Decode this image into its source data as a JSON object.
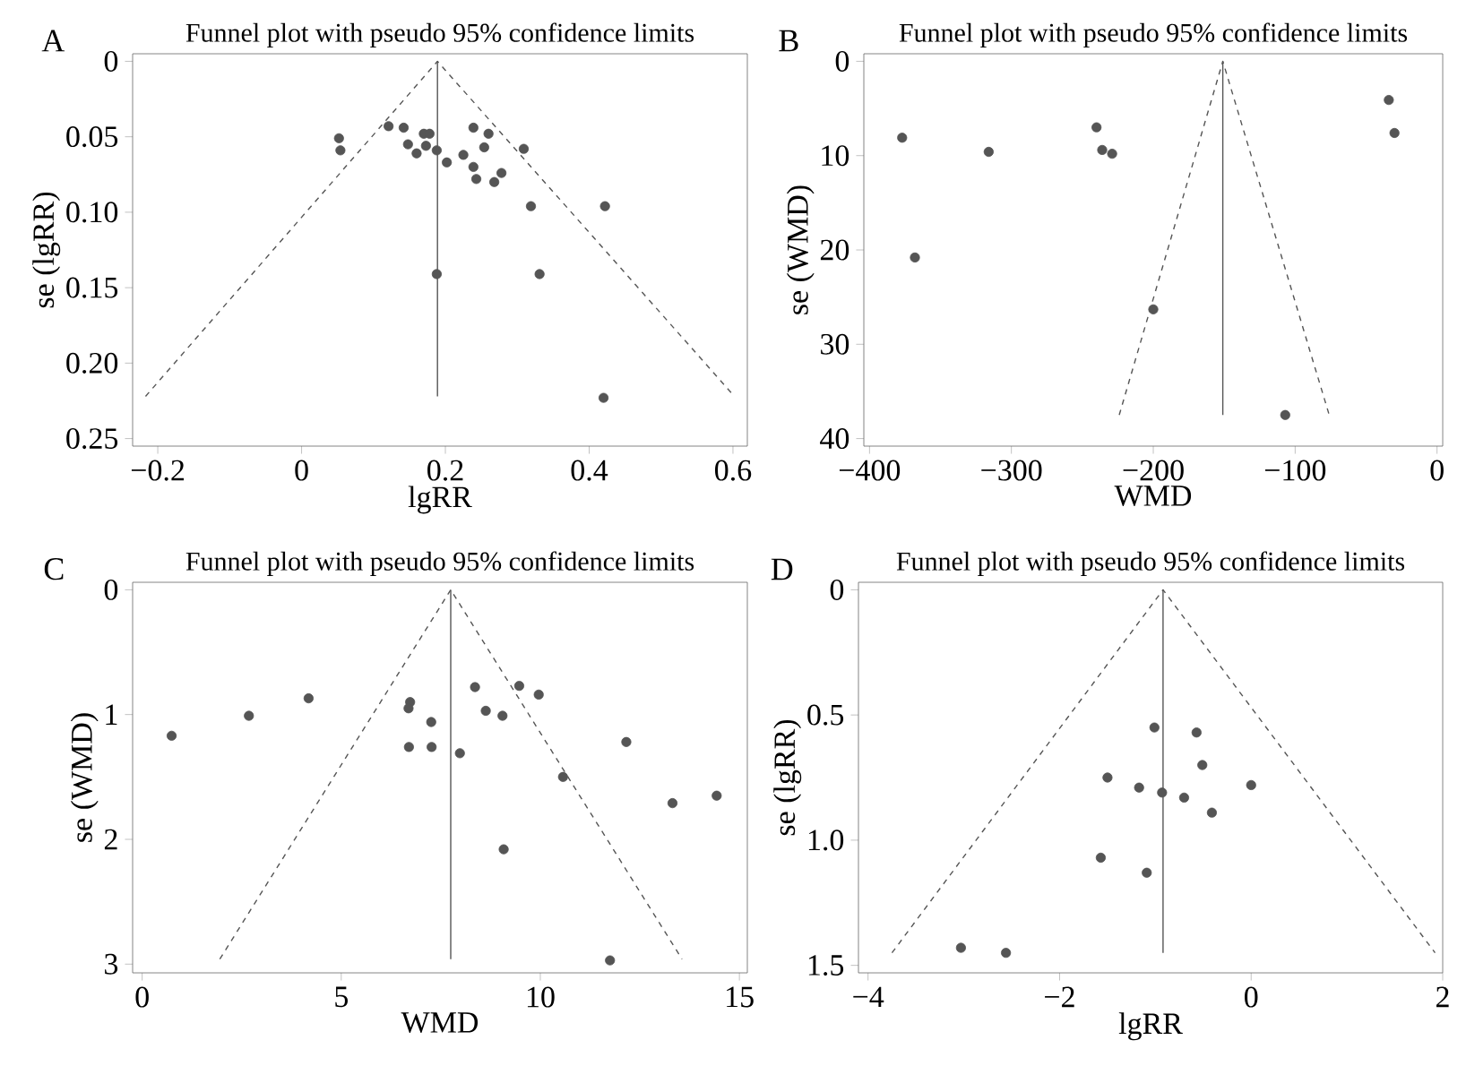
{
  "chart_data": [
    {
      "type": "scatter",
      "title": "Funnel plot with pseudo 95% confidence limits",
      "xlabel": "lgRR",
      "ylabel": "se (lgRR)",
      "annotations": [
        "A"
      ],
      "xlim": [
        -0.235,
        0.62
      ],
      "ylim": [
        0.255,
        -0.005
      ],
      "xticks": [
        {
          "value": -0.2,
          "label": "−0.2"
        },
        0,
        0.2,
        0.4,
        0.6
      ],
      "yticks": [
        0,
        0.05,
        {
          "value": 0.1,
          "label": "0.10"
        },
        0.15,
        {
          "value": 0.2,
          "label": "0.20"
        },
        0.25
      ],
      "grid": false,
      "series": [
        {
          "color": "#555555",
          "marker": "circle",
          "x": [
            0.052,
            0.054,
            0.121,
            0.142,
            0.148,
            0.16,
            0.17,
            0.178,
            0.173,
            0.188,
            0.202,
            0.225,
            0.239,
            0.239,
            0.243,
            0.26,
            0.254,
            0.268,
            0.278,
            0.309,
            0.319,
            0.422,
            0.188,
            0.331,
            0.42
          ],
          "values": [
            0.051,
            0.059,
            0.043,
            0.044,
            0.055,
            0.061,
            0.048,
            0.048,
            0.056,
            0.059,
            0.067,
            0.062,
            0.044,
            0.07,
            0.078,
            0.048,
            0.057,
            0.08,
            0.074,
            0.058,
            0.096,
            0.096,
            0.141,
            0.141,
            0.223
          ]
        },
        {
          "type": "line",
          "color": "#555555",
          "line_style": "dashed",
          "x": [
            -0.217,
            0.189,
            0.602
          ],
          "values": [
            0.222,
            0,
            0.222
          ]
        },
        {
          "type": "line",
          "color": "#555555",
          "line_style": "solid",
          "x": [
            0.189,
            0.189
          ],
          "values": [
            0,
            0.222
          ]
        }
      ]
    },
    {
      "type": "scatter",
      "title": "Funnel plot with pseudo 95% confidence limits",
      "xlabel": "WMD",
      "ylabel": "se (WMD)",
      "annotations": [
        "B"
      ],
      "xlim": [
        -404,
        4
      ],
      "ylim": [
        40.8,
        -0.8
      ],
      "xticks": [
        {
          "value": -400,
          "label": "−400"
        },
        {
          "value": -300,
          "label": "−300"
        },
        {
          "value": -200,
          "label": "−200"
        },
        {
          "value": -100,
          "label": "−100"
        },
        0
      ],
      "yticks": [
        0,
        10,
        20,
        30,
        40
      ],
      "grid": false,
      "series": [
        {
          "color": "#555555",
          "marker": "circle",
          "x": [
            -377,
            -368,
            -316,
            -240,
            -236,
            -229,
            -200,
            -107,
            -34,
            -30
          ],
          "values": [
            8.1,
            20.8,
            9.6,
            7.0,
            9.4,
            9.8,
            26.3,
            37.5,
            4.1,
            7.6
          ]
        },
        {
          "type": "line",
          "color": "#555555",
          "line_style": "dashed",
          "x": [
            -224,
            -151,
            -76
          ],
          "values": [
            37.5,
            0,
            37.5
          ]
        },
        {
          "type": "line",
          "color": "#555555",
          "line_style": "solid",
          "x": [
            -151,
            -151
          ],
          "values": [
            0,
            37.5
          ]
        }
      ]
    },
    {
      "type": "scatter",
      "title": "Funnel plot with pseudo 95% confidence limits",
      "xlabel": "WMD",
      "ylabel": "se (WMD)",
      "annotations": [
        "C"
      ],
      "xlim": [
        -0.24,
        15.2
      ],
      "ylim": [
        3.07,
        -0.06
      ],
      "xticks": [
        0,
        5,
        10,
        15
      ],
      "yticks": [
        0,
        1,
        2,
        3
      ],
      "grid": false,
      "series": [
        {
          "color": "#555555",
          "marker": "circle",
          "x": [
            0.74,
            2.68,
            4.18,
            6.73,
            6.69,
            7.26,
            6.7,
            7.27,
            7.98,
            8.36,
            8.63,
            9.05,
            9.47,
            9.96,
            10.57,
            12.16,
            9.08,
            13.32,
            14.43,
            11.75
          ],
          "values": [
            1.17,
            1.01,
            0.87,
            0.9,
            0.95,
            1.06,
            1.26,
            1.26,
            1.31,
            0.78,
            0.97,
            1.01,
            0.77,
            0.84,
            1.5,
            1.22,
            2.08,
            1.71,
            1.65,
            2.97
          ]
        },
        {
          "type": "line",
          "color": "#555555",
          "line_style": "dashed",
          "x": [
            1.95,
            7.75,
            13.56
          ],
          "values": [
            2.96,
            0,
            2.96
          ]
        },
        {
          "type": "line",
          "color": "#555555",
          "line_style": "solid",
          "x": [
            7.75,
            7.75
          ],
          "values": [
            0,
            2.96
          ]
        }
      ]
    },
    {
      "type": "scatter",
      "title": "Funnel plot with pseudo 95% confidence limits",
      "xlabel": "lgRR",
      "ylabel": "se (lgRR)",
      "annotations": [
        "D"
      ],
      "xlim": [
        -4.1,
        2.0
      ],
      "ylim": [
        1.53,
        -0.03
      ],
      "xticks": [
        {
          "value": -4,
          "label": "−4"
        },
        {
          "value": -2,
          "label": "−2"
        },
        0,
        2
      ],
      "yticks": [
        0,
        0.5,
        {
          "value": 1,
          "label": "1.0"
        },
        1.5
      ],
      "grid": false,
      "series": [
        {
          "color": "#555555",
          "marker": "circle",
          "x": [
            -1.01,
            -0.57,
            -0.51,
            -1.5,
            -1.17,
            -0.93,
            -0.7,
            -0.41,
            0.0,
            -1.57,
            -1.09,
            -3.03,
            -2.56
          ],
          "values": [
            0.55,
            0.57,
            0.7,
            0.75,
            0.79,
            0.81,
            0.83,
            0.89,
            0.78,
            1.07,
            1.13,
            1.43,
            1.45
          ]
        },
        {
          "type": "line",
          "color": "#555555",
          "line_style": "dashed",
          "x": [
            -3.75,
            -0.92,
            1.92
          ],
          "values": [
            1.45,
            0,
            1.45
          ]
        },
        {
          "type": "line",
          "color": "#555555",
          "line_style": "solid",
          "x": [
            -0.92,
            -0.92
          ],
          "values": [
            0,
            1.45
          ]
        }
      ]
    }
  ]
}
